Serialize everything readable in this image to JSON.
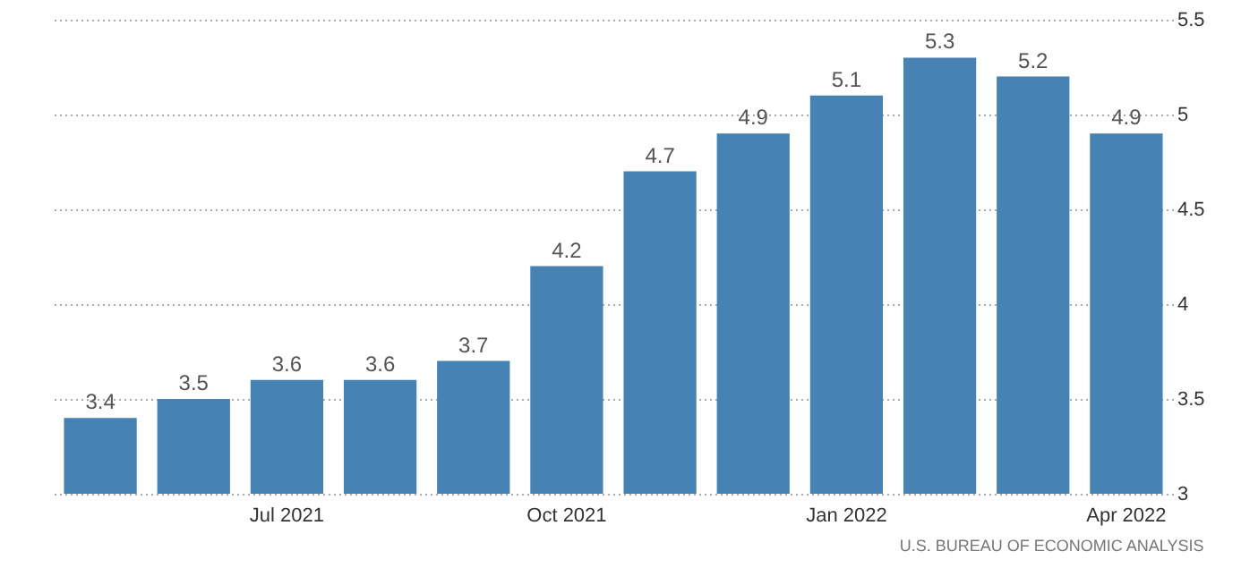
{
  "chart_data": {
    "type": "bar",
    "categories": [
      null,
      null,
      "Jul 2021",
      null,
      null,
      "Oct 2021",
      null,
      null,
      "Jan 2022",
      null,
      null,
      "Apr 2022"
    ],
    "values": [
      3.4,
      3.5,
      3.6,
      3.6,
      3.7,
      4.2,
      4.7,
      4.9,
      5.1,
      5.3,
      5.2,
      4.9
    ],
    "color": "#4682b4",
    "ylim": [
      3,
      5.5
    ],
    "yticks": [
      3,
      3.5,
      4,
      4.5,
      5,
      5.5
    ],
    "grid": "y",
    "data_labels": true,
    "annotations": [
      "U.S. BUREAU OF ECONOMIC ANALYSIS"
    ]
  }
}
